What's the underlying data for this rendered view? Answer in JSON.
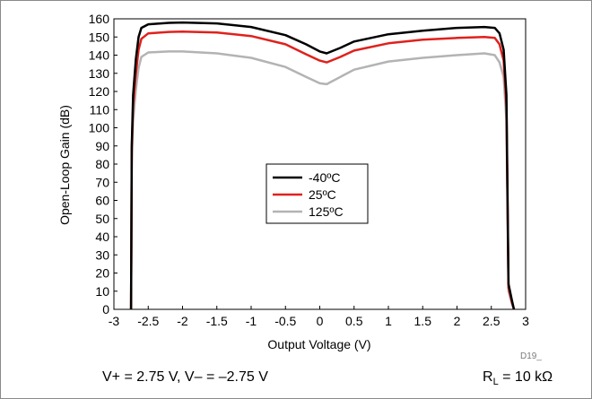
{
  "chart_data": {
    "type": "line",
    "title": "",
    "xlabel": "Output Voltage (V)",
    "ylabel": "Open-Loop Gain (dB)",
    "xlim": [
      -3,
      3
    ],
    "ylim": [
      0,
      160
    ],
    "xticks": [
      "-3",
      "-2.5",
      "-2",
      "-1.5",
      "-1",
      "-0.5",
      "0",
      "0.5",
      "1",
      "1.5",
      "2",
      "2.5",
      "3"
    ],
    "yticks": [
      "0",
      "10",
      "20",
      "30",
      "40",
      "50",
      "60",
      "70",
      "80",
      "90",
      "100",
      "110",
      "120",
      "130",
      "140",
      "150",
      "160"
    ],
    "grid": false,
    "legend_position": "center",
    "figure_id": "D19_",
    "series": [
      {
        "name": "-40ºC",
        "color": "#000000",
        "points": [
          [
            -2.75,
            0
          ],
          [
            -2.74,
            90
          ],
          [
            -2.72,
            118
          ],
          [
            -2.68,
            138
          ],
          [
            -2.64,
            150
          ],
          [
            -2.6,
            155
          ],
          [
            -2.5,
            157
          ],
          [
            -2.2,
            157.8
          ],
          [
            -2.0,
            158
          ],
          [
            -1.5,
            157.5
          ],
          [
            -1.0,
            155.5
          ],
          [
            -0.5,
            151
          ],
          [
            -0.2,
            146
          ],
          [
            0.0,
            142
          ],
          [
            0.1,
            141
          ],
          [
            0.3,
            144
          ],
          [
            0.5,
            147.5
          ],
          [
            1.0,
            151.5
          ],
          [
            1.5,
            153.5
          ],
          [
            2.0,
            155
          ],
          [
            2.4,
            155.5
          ],
          [
            2.55,
            155
          ],
          [
            2.62,
            152
          ],
          [
            2.68,
            143
          ],
          [
            2.72,
            118
          ],
          [
            2.75,
            14
          ],
          [
            2.8,
            5
          ],
          [
            2.83,
            0
          ]
        ]
      },
      {
        "name": "25ºC",
        "color": "#e0211c",
        "points": [
          [
            -2.75,
            0
          ],
          [
            -2.74,
            88
          ],
          [
            -2.72,
            112
          ],
          [
            -2.68,
            130
          ],
          [
            -2.64,
            143
          ],
          [
            -2.6,
            149
          ],
          [
            -2.5,
            152
          ],
          [
            -2.2,
            152.8
          ],
          [
            -2.0,
            153
          ],
          [
            -1.5,
            152.5
          ],
          [
            -1.0,
            150.5
          ],
          [
            -0.5,
            146
          ],
          [
            -0.2,
            140.5
          ],
          [
            0.0,
            137
          ],
          [
            0.1,
            136
          ],
          [
            0.3,
            139
          ],
          [
            0.5,
            142.5
          ],
          [
            1.0,
            146.5
          ],
          [
            1.5,
            148.5
          ],
          [
            2.0,
            149.5
          ],
          [
            2.4,
            150
          ],
          [
            2.55,
            149.5
          ],
          [
            2.62,
            146
          ],
          [
            2.68,
            137
          ],
          [
            2.72,
            112
          ],
          [
            2.75,
            12
          ],
          [
            2.8,
            4
          ],
          [
            2.83,
            0
          ]
        ]
      },
      {
        "name": "125ºC",
        "color": "#b3b3b3",
        "points": [
          [
            -2.75,
            0
          ],
          [
            -2.74,
            84
          ],
          [
            -2.72,
            104
          ],
          [
            -2.68,
            121
          ],
          [
            -2.64,
            133
          ],
          [
            -2.6,
            139
          ],
          [
            -2.5,
            141.5
          ],
          [
            -2.2,
            142
          ],
          [
            -2.0,
            142
          ],
          [
            -1.5,
            141
          ],
          [
            -1.0,
            138.5
          ],
          [
            -0.5,
            133.5
          ],
          [
            -0.2,
            128
          ],
          [
            0.0,
            124.5
          ],
          [
            0.1,
            124
          ],
          [
            0.3,
            128
          ],
          [
            0.5,
            132
          ],
          [
            1.0,
            136.5
          ],
          [
            1.5,
            138.5
          ],
          [
            2.0,
            140
          ],
          [
            2.4,
            141
          ],
          [
            2.55,
            140
          ],
          [
            2.62,
            136
          ],
          [
            2.68,
            128
          ],
          [
            2.72,
            104
          ],
          [
            2.75,
            10
          ],
          [
            2.8,
            3
          ],
          [
            2.83,
            0
          ]
        ]
      }
    ]
  },
  "conditions": {
    "supply": "V+ = 2.75 V, V– = –2.75 V",
    "load_prefix": "R",
    "load_subscript": "L",
    "load_value": " = 10 kΩ"
  }
}
